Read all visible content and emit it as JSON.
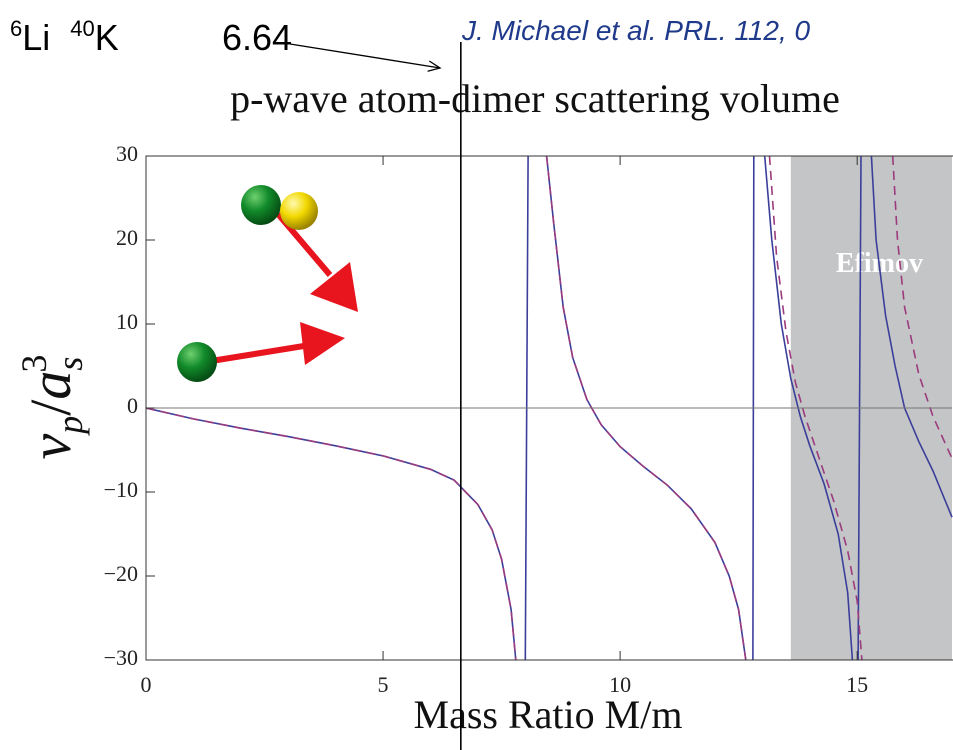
{
  "chart_data": {
    "type": "line",
    "title": "p-wave atom-dimer scattering volume",
    "citation": "J. Michael et al. PRL. 112, 0",
    "isotopes": [
      {
        "mass": "6",
        "symbol": "Li"
      },
      {
        "mass": "40",
        "symbol": "K"
      }
    ],
    "marker_x": 6.64,
    "xlabel": "Mass Ratio M/m",
    "ylabel": {
      "base": "v",
      "sub": "p",
      "slash": "/",
      "base2": "a",
      "sub2": "s",
      "sup2": "3"
    },
    "shaded_region": {
      "xlim": [
        13.6,
        17
      ],
      "label": "Efimov",
      "color": "#c4c5c7"
    },
    "xlim": [
      0,
      17
    ],
    "ylim": [
      -30,
      30
    ],
    "xticks": [
      0,
      5,
      10,
      15
    ],
    "yticks": [
      30,
      20,
      10,
      0,
      {
        "value": -10,
        "label": "−10"
      },
      {
        "value": -20,
        "label": "−20"
      },
      {
        "value": -30,
        "label": "−30"
      }
    ],
    "series": [
      {
        "color": "#3b3f9a",
        "dashed": false,
        "x": [
          0,
          1,
          2,
          3,
          4,
          5,
          6,
          6.5,
          7,
          7.3,
          7.5,
          7.7,
          7.8,
          null,
          8.0,
          8.06,
          null,
          8.45,
          8.6,
          8.8,
          9,
          9.3,
          9.6,
          10,
          10.5,
          11,
          11.5,
          12,
          12.3,
          12.5,
          12.65,
          null,
          12.8,
          12.82,
          null,
          13.05,
          13.2,
          13.4,
          13.6,
          13.8,
          14,
          14.3,
          14.6,
          14.8,
          14.9,
          null,
          15.02,
          15.08,
          null,
          15.3,
          15.4,
          15.6,
          15.8,
          16,
          16.3,
          16.6,
          17
        ],
        "values": [
          0,
          -1.3,
          -2.4,
          -3.4,
          -4.5,
          -5.7,
          -7.3,
          -8.6,
          -11.5,
          -14.5,
          -18,
          -24,
          -30,
          null,
          -30,
          30,
          null,
          30,
          22,
          12,
          6,
          1,
          -2,
          -4.6,
          -7,
          -9.2,
          -12,
          -16,
          -20,
          -24,
          -30,
          null,
          -30,
          30,
          null,
          30,
          20,
          10,
          3.5,
          -1,
          -4.5,
          -9,
          -15,
          -22,
          -30,
          null,
          -30,
          30,
          null,
          30,
          20,
          11,
          5,
          0,
          -4,
          -7.5,
          -13
        ]
      },
      {
        "color": "#9b3b7e",
        "dashed": true,
        "x": [
          0,
          1,
          2,
          3,
          4,
          5,
          6,
          6.5,
          7,
          7.3,
          7.5,
          7.7,
          7.8,
          null,
          8.45,
          8.6,
          8.8,
          9,
          9.3,
          9.6,
          10,
          10.5,
          11,
          11.5,
          12,
          12.3,
          12.5,
          12.65,
          null,
          13.15,
          13.3,
          13.5,
          13.7,
          13.9,
          14.2,
          14.5,
          14.8,
          15,
          15.1,
          null,
          15.75,
          15.85,
          16,
          16.3,
          16.6,
          17
        ],
        "values": [
          0,
          -1.3,
          -2.4,
          -3.4,
          -4.5,
          -5.7,
          -7.3,
          -8.6,
          -11.5,
          -14.5,
          -18,
          -24,
          -30,
          null,
          30,
          22,
          12,
          6,
          1,
          -2,
          -4.6,
          -7,
          -9.2,
          -12,
          -16,
          -20,
          -24,
          -30,
          null,
          30,
          18,
          9,
          3,
          -1,
          -6,
          -11,
          -17,
          -23,
          -30,
          null,
          30,
          20,
          12,
          4,
          -1,
          -6
        ]
      }
    ]
  }
}
